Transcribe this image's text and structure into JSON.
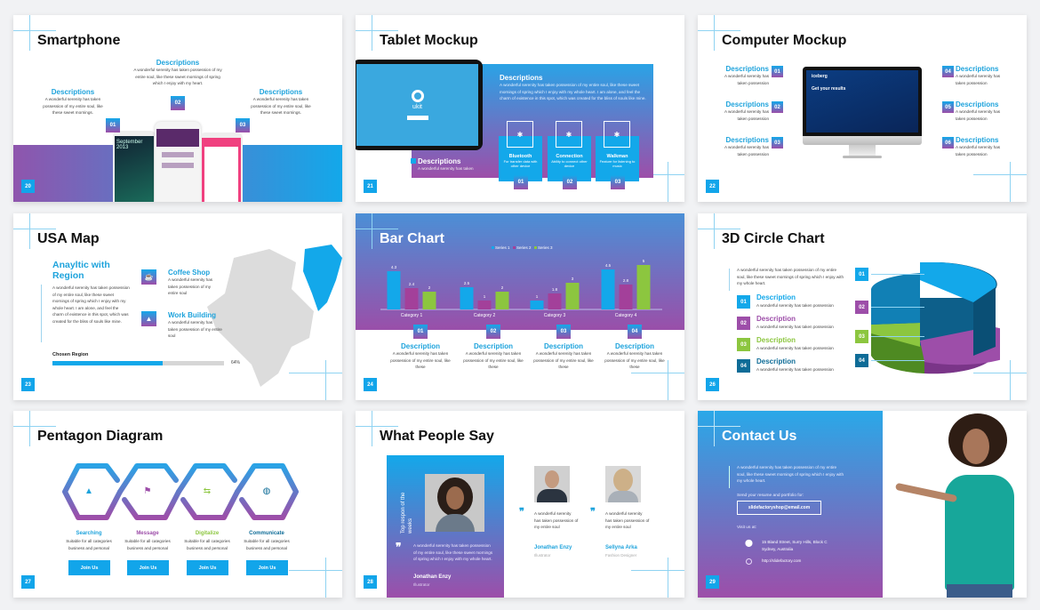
{
  "colors": {
    "blue": "#13a8ea",
    "purple": "#9d4ea9",
    "green": "#8cc63f",
    "dark_blue": "#0e6c97",
    "magenta": "#a3409a"
  },
  "slides": {
    "smartphone": {
      "title": "Smartphone",
      "number": "20",
      "items": [
        {
          "badge": "01",
          "heading": "Descriptions",
          "text": "A wonderful serenity has taken possession of my entire soul, like these sweet mornings."
        },
        {
          "badge": "02",
          "heading": "Descriptions",
          "text": "A wonderful serenity has taken possession of my entire soul, like these sweet mornings of spring which I enjoy with my heart."
        },
        {
          "badge": "03",
          "heading": "Descriptions",
          "text": "A wonderful serenity has taken possession of my entire soul, like these sweet mornings."
        }
      ],
      "phone_text": "September 2013"
    },
    "tablet": {
      "title": "Tablet Mockup",
      "number": "21",
      "screen_brand": "ukit",
      "heading": "Descriptions",
      "text": "A wonderful serenity has taken possession of my entire soul, like these sweet mornings of spring which I enjoy with my whole heart. I am alone, and feel the charm of existence in this spot, which was created for the bliss of souls like mine.",
      "sub_heading": "Descriptions",
      "sub_text": "A wonderful serenity has taken",
      "cards": [
        {
          "icon": "bluetooth-icon",
          "label": "Bluetooth",
          "text": "For transfer data with other device",
          "badge": "01"
        },
        {
          "icon": "connection-icon",
          "label": "Connection",
          "text": "Ability to connect other device",
          "badge": "02"
        },
        {
          "icon": "walkman-icon",
          "label": "Walkman",
          "text": "Feature for listening to music",
          "badge": "03"
        }
      ]
    },
    "computer": {
      "title": "Computer Mockup",
      "number": "22",
      "screen_brand": "iceberg",
      "screen_text": "Get your results",
      "items": [
        {
          "badge": "01",
          "heading": "Descriptions",
          "text": "A wonderful serenity has taken possession"
        },
        {
          "badge": "02",
          "heading": "Descriptions",
          "text": "A wonderful serenity has taken possession"
        },
        {
          "badge": "03",
          "heading": "Descriptions",
          "text": "A wonderful serenity has taken possession"
        },
        {
          "badge": "04",
          "heading": "Descriptions",
          "text": "A wonderful serenity has taken possession"
        },
        {
          "badge": "05",
          "heading": "Descriptions",
          "text": "A wonderful serenity has taken possession"
        },
        {
          "badge": "06",
          "heading": "Descriptions",
          "text": "A wonderful serenity has taken possession"
        }
      ]
    },
    "usa_map": {
      "title": "USA Map",
      "number": "23",
      "heading": "Anayltic with Region",
      "text": "A wonderful serenity has taken possession of my entire soul, like these sweet mornings of spring which I enjoy with my whole heart. I am alone, and feel the charm of existence in this spot, which was created for the bliss of souls like mine.",
      "features": [
        {
          "icon": "coffee-icon",
          "label": "Coffee Shop",
          "text": "A wonderful serenity has taken possession of my entire soul"
        },
        {
          "icon": "building-icon",
          "label": "Work Building",
          "text": "A wonderful serenity has taken possession of my entire soul"
        }
      ],
      "progress_label": "Chosen Region",
      "progress_value": 64,
      "progress_text": "64%"
    },
    "bar_chart": {
      "title": "Bar Chart",
      "number": "24",
      "descriptions": [
        {
          "badge": "01",
          "heading": "Description",
          "text": "A wonderful serenity has taken possession of my entire soul, like these"
        },
        {
          "badge": "02",
          "heading": "Description",
          "text": "A wonderful serenity has taken possession of my entire soul, like these"
        },
        {
          "badge": "03",
          "heading": "Description",
          "text": "A wonderful serenity has taken possession of my entire soul, like these"
        },
        {
          "badge": "04",
          "heading": "Description",
          "text": "A wonderful serenity has taken possession of my entire soul, like these"
        }
      ]
    },
    "circle_chart": {
      "title": "3D Circle Chart",
      "number": "26",
      "text": "A wonderful serenity has taken possession of my entire soul, like these sweet mornings of spring which I enjoy with my whole heart.",
      "items": [
        {
          "badge": "01",
          "heading": "Description",
          "text": "A wonderful serenity has taken possession",
          "color": "#13a8ea"
        },
        {
          "badge": "02",
          "heading": "Description",
          "text": "A wonderful serenity has taken possession",
          "color": "#9d4ea9"
        },
        {
          "badge": "03",
          "heading": "Description",
          "text": "A wonderful serenity has taken possession",
          "color": "#8cc63f"
        },
        {
          "badge": "04",
          "heading": "Description",
          "text": "A wonderful serenity has taken possession",
          "color": "#0e6c97"
        }
      ],
      "chart_badges": [
        "01",
        "02",
        "03",
        "04"
      ]
    },
    "pentagon": {
      "title": "Pentagon Diagram",
      "number": "27",
      "items": [
        {
          "icon": "map-pin-icon",
          "label": "Searching",
          "text": "Suitable for all categories business and personal",
          "button": "Join Us",
          "color": "#1ea3dc"
        },
        {
          "icon": "flag-icon",
          "label": "Message",
          "text": "Suitable for all categories business and personal",
          "button": "Join Us",
          "color": "#9d4ea9"
        },
        {
          "icon": "signpost-icon",
          "label": "Digitalize",
          "text": "Suitable for all categories business and personal",
          "button": "Join Us",
          "color": "#8cc63f"
        },
        {
          "icon": "globe-icon",
          "label": "Communicate",
          "text": "Suitable for all categories business and personal",
          "button": "Join Us",
          "color": "#0e6c97"
        }
      ]
    },
    "testimonials": {
      "title": "What People Say",
      "number": "28",
      "featured": {
        "vertical_text": "Top respon of the weeks",
        "quote": "A wonderful serenity has taken possession of my entire soul, like these sweet mornings of spring which I enjoy with my whole heart.",
        "name": "Jonathan Enzy",
        "role": "Illustrator"
      },
      "people": [
        {
          "quote": "A wonderful serenity has taken possession of my entire soul",
          "name": "Jonathan Enzy",
          "role": "Illustrator"
        },
        {
          "quote": "A wonderful serenity has taken possession of my entire soul",
          "name": "Sellyna Arka",
          "role": "Fashion Designer"
        }
      ]
    },
    "contact": {
      "title": "Contact Us",
      "number": "29",
      "text": "A wonderful serenity has taken possession of my entire soul, like these sweet mornings of spring which I enjoy with my whole heart.",
      "send_label": "Send your resume and portfolio for:",
      "email": "slidefactoryshop@email.com",
      "visit_label": "Visit us at:",
      "address": "15 Bland Street, Surry Hills, Block C Sydney, Australia",
      "website": "http://slidefactory.com"
    }
  },
  "chart_data": {
    "type": "bar",
    "categories": [
      "Category 1",
      "Category 2",
      "Category 3",
      "Category 4"
    ],
    "series": [
      {
        "name": "Series 1",
        "color": "#13a8ea",
        "values": [
          4.3,
          2.5,
          1,
          4.5
        ]
      },
      {
        "name": "Series 2",
        "color": "#a3409a",
        "values": [
          2.4,
          1,
          1.8,
          2.8
        ]
      },
      {
        "name": "Series 3",
        "color": "#8cc63f",
        "values": [
          2,
          2,
          3,
          5
        ]
      }
    ],
    "legend": "top-center",
    "grid": false,
    "ylim": [
      0,
      5
    ]
  }
}
